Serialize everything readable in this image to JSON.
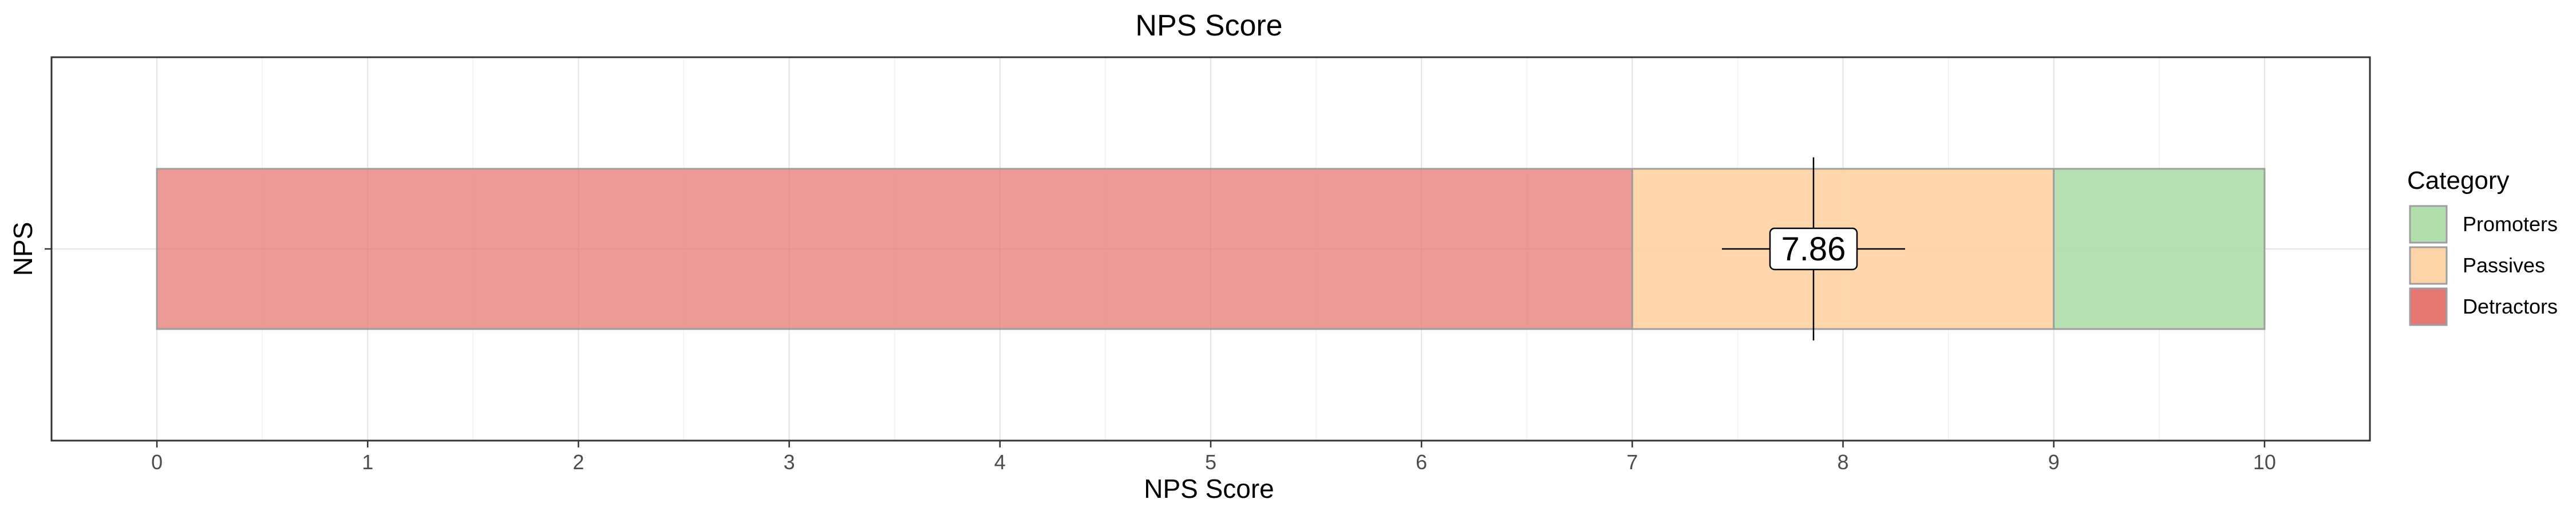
{
  "chart_data": {
    "type": "bar",
    "orientation": "horizontal",
    "stacked": true,
    "title": "NPS Score",
    "xlabel": "NPS Score",
    "ylabel": "NPS",
    "categories": [
      "NPS"
    ],
    "xlim": [
      -0.5,
      10.5
    ],
    "xticks": [
      0,
      1,
      2,
      3,
      4,
      5,
      6,
      7,
      8,
      9,
      10
    ],
    "grid": true,
    "segments": [
      {
        "name": "Detractors",
        "start": 0,
        "end": 7,
        "color": "#E57872"
      },
      {
        "name": "Passives",
        "start": 7,
        "end": 9,
        "color": "#FDD4A8"
      },
      {
        "name": "Promoters",
        "start": 9,
        "end": 10,
        "color": "#B2DEAE"
      }
    ],
    "marker": {
      "value": 7.86,
      "label": "7.86"
    },
    "legend": {
      "title": "Category",
      "placement": "right",
      "entries": [
        {
          "label": "Promoters",
          "color": "#B2DEAE"
        },
        {
          "label": "Passives",
          "color": "#FDD4A8"
        },
        {
          "label": "Detractors",
          "color": "#E57872"
        }
      ]
    }
  }
}
